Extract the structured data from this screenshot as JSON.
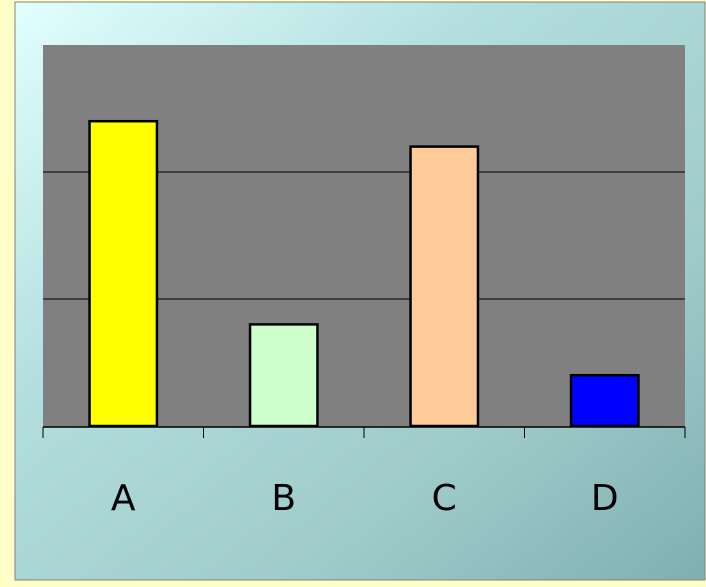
{
  "chart_data": {
    "type": "bar",
    "categories": [
      "A",
      "B",
      "C",
      "D"
    ],
    "values": [
      12,
      4,
      11,
      2
    ],
    "colors": [
      "#ffff00",
      "#ccffcc",
      "#ffcc99",
      "#0000ff"
    ],
    "ylim": [
      0,
      15
    ],
    "gridlines": [
      5,
      10
    ],
    "grid": true,
    "legend": "none",
    "plot_background": "#808080",
    "frame_background": "teal-gradient"
  }
}
